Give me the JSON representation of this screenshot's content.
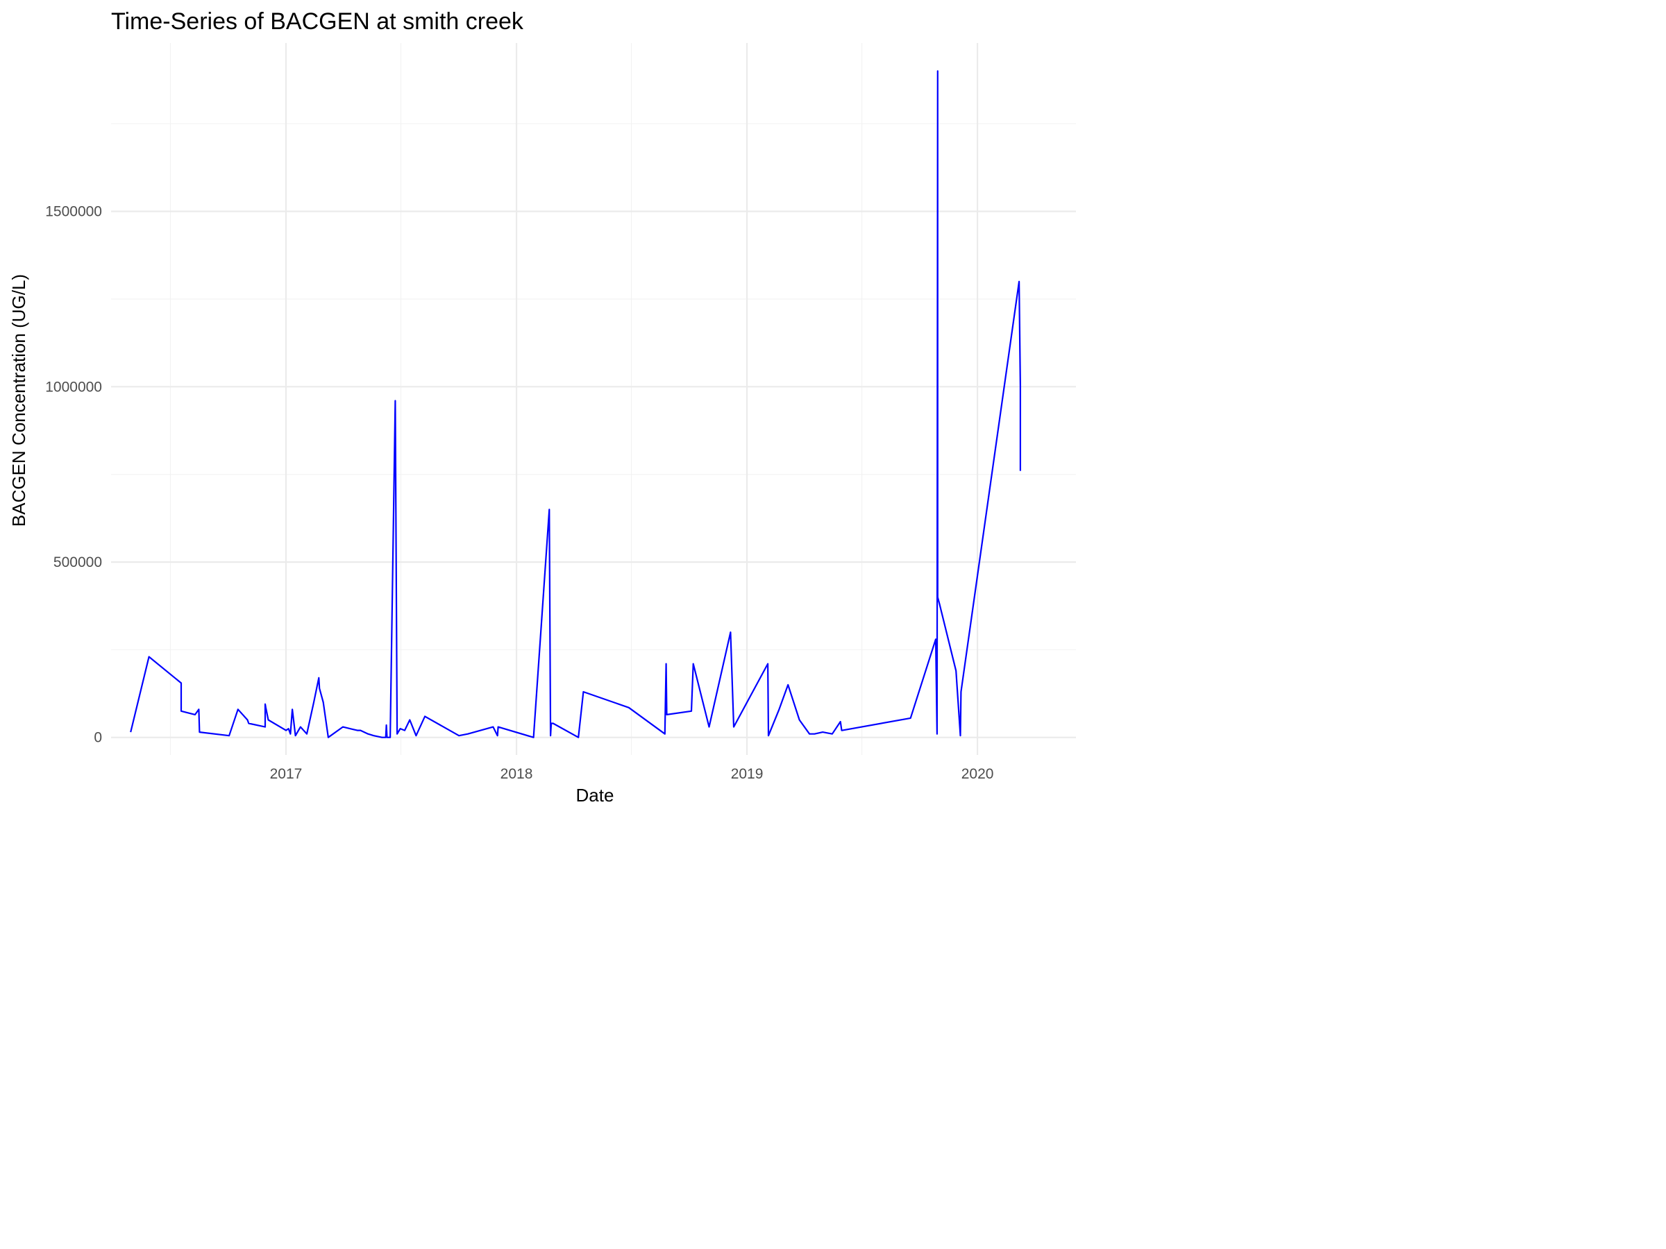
{
  "chart_data": {
    "type": "line",
    "title": "Time-Series of BACGEN at smith creek",
    "xlabel": "Date",
    "ylabel": "BACGEN Concentration (UG/L)",
    "xlim": [
      "2016-03-30",
      "2020-06-05"
    ],
    "ylim": [
      -50000,
      1980000
    ],
    "x_major_ticks": [
      "2017-01-01",
      "2018-01-01",
      "2019-01-01",
      "2020-01-01"
    ],
    "x_minor_ticks": [
      "2016-07-02",
      "2017-07-02",
      "2018-07-02",
      "2019-07-02"
    ],
    "y_major_ticks": [
      0,
      500000,
      1000000,
      1500000
    ],
    "y_minor_ticks": [
      250000,
      750000,
      1250000,
      1750000
    ],
    "x_tick_labels": [
      "2017",
      "2018",
      "2019",
      "2020"
    ],
    "y_tick_labels": [
      "0",
      "500000",
      "1000000",
      "1500000"
    ],
    "grid": true,
    "legend": "none",
    "color": "#0000ff",
    "series": [
      {
        "x": [
          "2016-04-30",
          "2016-05-29",
          "2016-07-19",
          "2016-07-19",
          "2016-08-10",
          "2016-08-16",
          "2016-08-17",
          "2016-10-03",
          "2016-10-17",
          "2016-11-01",
          "2016-11-03",
          "2016-11-29",
          "2016-11-29",
          "2016-11-30",
          "2016-12-04",
          "2017-01-01",
          "2017-01-05",
          "2017-01-08",
          "2017-01-11",
          "2017-01-16",
          "2017-01-24",
          "2017-02-03",
          "2017-02-14",
          "2017-02-22",
          "2017-02-23",
          "2017-03-01",
          "2017-03-09",
          "2017-04-01",
          "2017-04-24",
          "2017-04-26",
          "2017-04-29",
          "2017-05-11",
          "2017-05-20",
          "2017-06-02",
          "2017-06-08",
          "2017-06-09",
          "2017-06-10",
          "2017-06-15",
          "2017-06-23",
          "2017-06-26",
          "2017-07-01",
          "2017-07-08",
          "2017-07-16",
          "2017-07-26",
          "2017-08-09",
          "2017-10-02",
          "2017-10-16",
          "2017-11-25",
          "2017-12-02",
          "2017-12-03",
          "2018-01-28",
          "2018-02-22",
          "2018-02-24",
          "2018-02-25",
          "2018-02-28",
          "2018-04-09",
          "2018-04-17",
          "2018-06-28",
          "2018-08-24",
          "2018-08-26",
          "2018-08-27",
          "2018-10-05",
          "2018-10-08",
          "2018-11-02",
          "2018-12-06",
          "2018-12-11",
          "2019-02-03",
          "2019-02-04",
          "2019-02-21",
          "2019-03-07",
          "2019-03-25",
          "2019-04-10",
          "2019-04-18",
          "2019-05-01",
          "2019-05-16",
          "2019-05-29",
          "2019-05-31",
          "2019-06-01",
          "2019-09-17",
          "2019-10-27",
          "2019-10-29",
          "2019-10-30",
          "2019-10-30",
          "2019-10-30",
          "2019-11-02",
          "2019-11-28",
          "2019-12-05",
          "2019-12-06",
          "2020-03-07",
          "2020-03-09",
          "2020-03-09"
        ],
        "values": [
          15000,
          230000,
          155000,
          75000,
          65000,
          80000,
          15000,
          5000,
          80000,
          50000,
          40000,
          30000,
          95000,
          85000,
          50000,
          20000,
          25000,
          10000,
          80000,
          5000,
          30000,
          10000,
          100000,
          170000,
          140000,
          100000,
          0,
          30000,
          20000,
          20000,
          20000,
          10000,
          5000,
          0,
          0,
          35000,
          0,
          0,
          960000,
          10000,
          25000,
          20000,
          50000,
          5000,
          60000,
          5000,
          10000,
          30000,
          5000,
          30000,
          0,
          650000,
          5000,
          40000,
          40000,
          0,
          130000,
          85000,
          10000,
          210000,
          65000,
          75000,
          210000,
          30000,
          300000,
          30000,
          210000,
          5000,
          80000,
          150000,
          50000,
          10000,
          10000,
          15000,
          10000,
          45000,
          20000,
          20000,
          55000,
          280000,
          10000,
          1900000,
          1600000,
          400000,
          380000,
          190000,
          5000,
          130000,
          1300000,
          1000000,
          760000
        ]
      }
    ]
  }
}
